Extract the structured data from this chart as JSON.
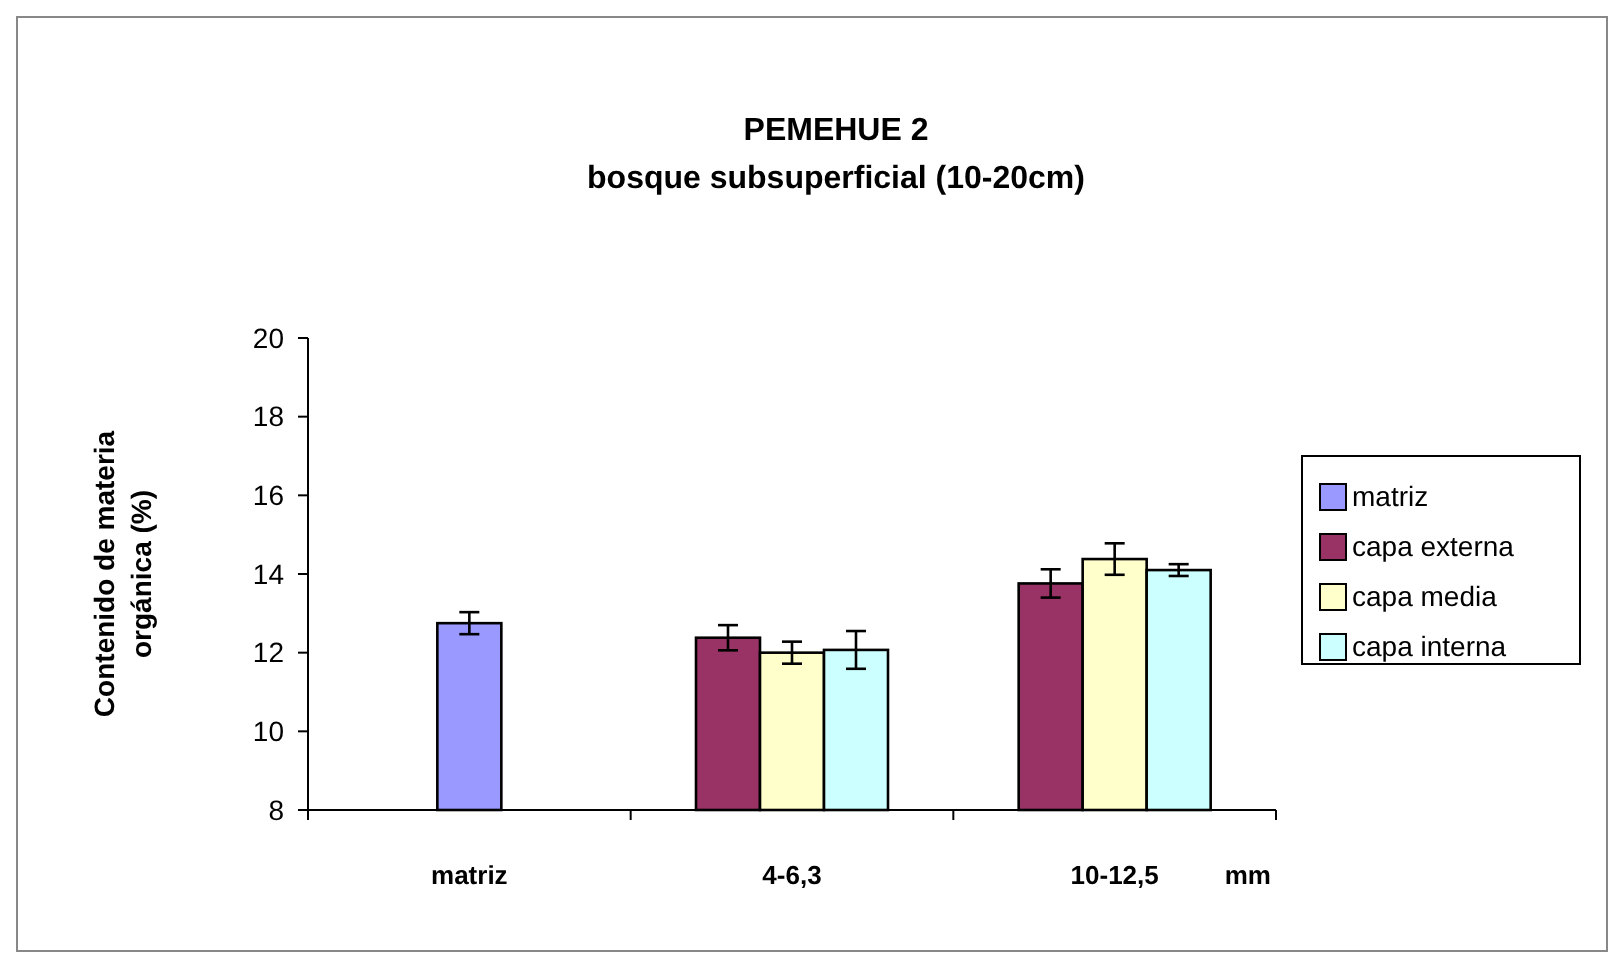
{
  "chart_data": {
    "type": "bar",
    "title": "PEMEHUE 2",
    "subtitle": "bosque subsuperficial (10-20cm)",
    "ylabel": "Contenido de materia orgánica (%)",
    "xlabel": "mm",
    "categories": [
      "matriz",
      "4-6,3",
      "10-12,5"
    ],
    "series": [
      {
        "name": "matriz",
        "color": "#9999ff",
        "values": [
          12.75,
          null,
          null
        ],
        "errors": [
          0.28,
          null,
          null
        ]
      },
      {
        "name": "capa externa",
        "color": "#993366",
        "values": [
          null,
          12.38,
          13.76
        ],
        "errors": [
          null,
          0.32,
          0.36
        ]
      },
      {
        "name": "capa media",
        "color": "#ffffcc",
        "values": [
          null,
          12.0,
          14.38
        ],
        "errors": [
          null,
          0.28,
          0.4
        ]
      },
      {
        "name": "capa interna",
        "color": "#ccffff",
        "values": [
          null,
          12.07,
          14.1
        ],
        "errors": [
          null,
          0.48,
          0.15
        ]
      }
    ],
    "ylim": [
      8,
      20
    ],
    "yticks": [
      8,
      10,
      12,
      14,
      16,
      18,
      20
    ],
    "grid": false,
    "legend": "right"
  }
}
